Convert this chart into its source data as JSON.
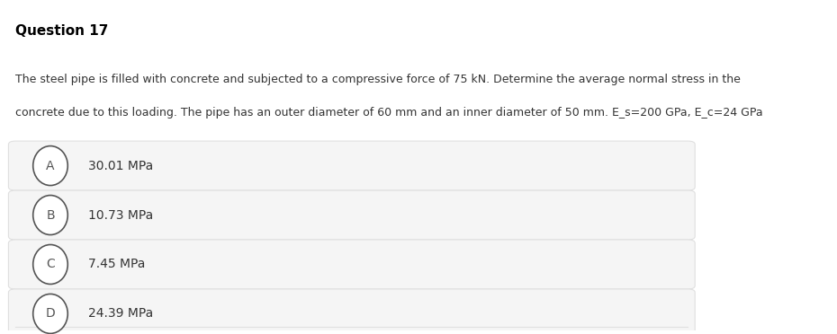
{
  "title": "Question 17",
  "description_line1": "The steel pipe is filled with concrete and subjected to a compressive force of 75 kN. Determine the average normal stress in the",
  "description_line2": "concrete due to this loading. The pipe has an outer diameter of 60 mm and an inner diameter of 50 mm. E_s=200 GPa, E_c=24 GPa",
  "options": [
    {
      "letter": "A",
      "text": "30.01 MPa"
    },
    {
      "letter": "B",
      "text": "10.73 MPa"
    },
    {
      "letter": "C",
      "text": "7.45 MPa"
    },
    {
      "letter": "D",
      "text": "24.39 MPa"
    }
  ],
  "bg_color": "#ffffff",
  "option_bg_color": "#f5f5f5",
  "option_border_color": "#e0e0e0",
  "title_color": "#000000",
  "text_color": "#333333",
  "circle_edge_color": "#555555",
  "circle_face_color": "#ffffff",
  "title_fontsize": 11,
  "body_fontsize": 9,
  "option_fontsize": 10
}
